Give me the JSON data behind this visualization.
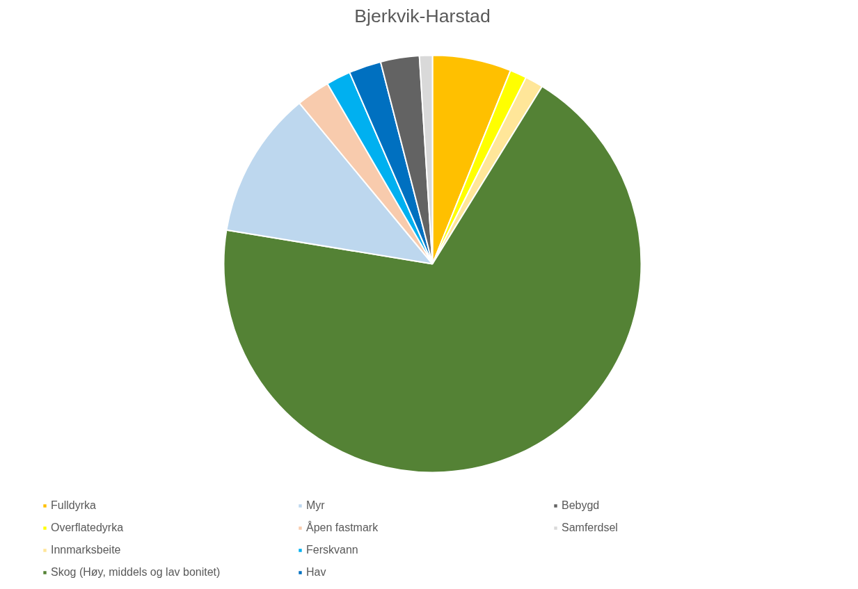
{
  "chart_data": {
    "type": "pie",
    "title": "Bjerkvik-Harstad",
    "categories": [
      "Fulldyrka",
      "Overflatedyrka",
      "Innmarksbeite",
      "Skog (Høy, middels og lav bonitet)",
      "Myr",
      "Åpen fastmark",
      "Ferskvann",
      "Hav",
      "Bebygd",
      "Samferdsel"
    ],
    "values": [
      6.1,
      1.3,
      1.4,
      68.8,
      11.4,
      2.6,
      1.9,
      2.5,
      3.0,
      1.0
    ],
    "colors": [
      "#ffc000",
      "#ffff00",
      "#ffe699",
      "#548235",
      "#bdd7ee",
      "#f8cbad",
      "#00b0f0",
      "#0070c0",
      "#636363",
      "#d9d9d9"
    ],
    "legend": "bottom"
  }
}
